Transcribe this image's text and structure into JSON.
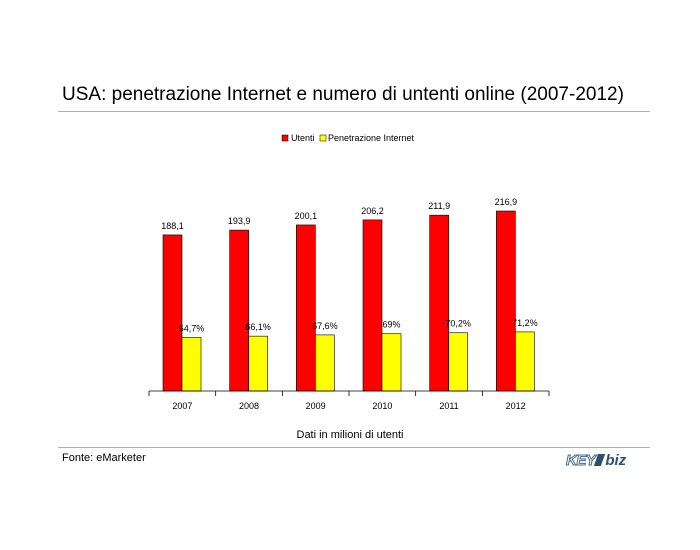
{
  "title": "USA: penetrazione Internet e numero di untenti online (2007-2012)",
  "footnote": "Dati in milioni di utenti",
  "source": "Fonte: eMarketer",
  "logo": {
    "part1": "KEY",
    "part2": "biz"
  },
  "colors": {
    "utenti": "#ff0000",
    "penetrazione": "#ffff00",
    "outline": "#000000"
  },
  "chart_data": {
    "type": "bar",
    "categories": [
      "2007",
      "2008",
      "2009",
      "2010",
      "2011",
      "2012"
    ],
    "series": [
      {
        "name": "Utenti",
        "values": [
          188.1,
          193.9,
          200.1,
          206.2,
          211.9,
          216.9
        ],
        "labels": [
          "188,1",
          "193,9",
          "200,1",
          "206,2",
          "211,9",
          "216,9"
        ]
      },
      {
        "name": "Penetrazione Internet",
        "values": [
          64.7,
          66.1,
          67.6,
          69,
          70.2,
          71.2
        ],
        "labels": [
          "64,7%",
          "66,1%",
          "67,6%",
          "69%",
          "70,2%",
          "71,2%"
        ]
      }
    ],
    "legend": "top-center",
    "grid": false
  }
}
